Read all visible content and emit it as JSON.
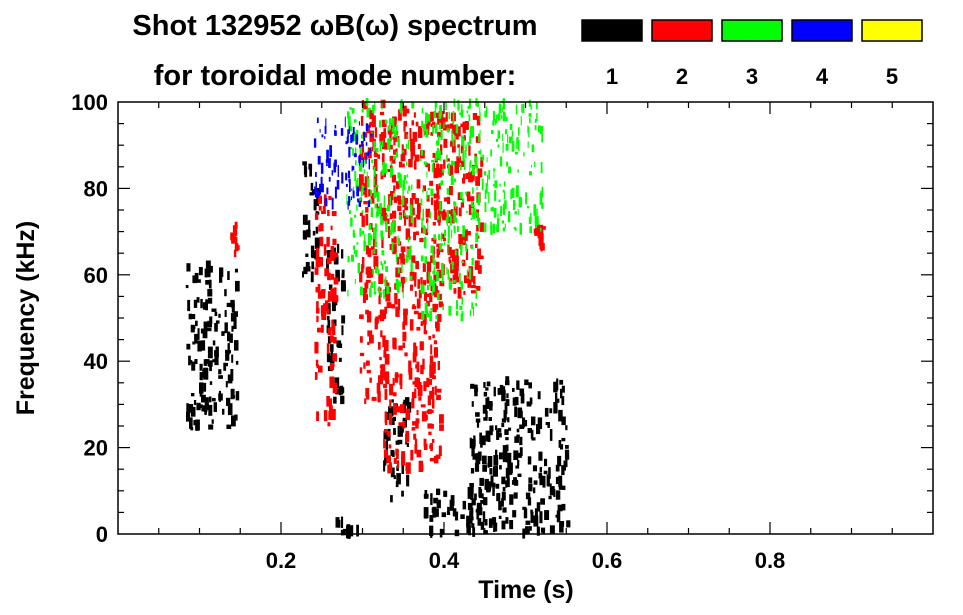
{
  "chart_data": {
    "type": "heatmap",
    "title_line1": "Shot 132952 ωB(ω) spectrum",
    "title_line2": "for toroidal mode number:",
    "xlabel": "Time (s)",
    "ylabel": "Frequency (kHz)",
    "xlim": [
      0.0,
      1.0
    ],
    "ylim": [
      0,
      100
    ],
    "x_tick_labels": [
      "0.2",
      "0.4",
      "0.6",
      "0.8"
    ],
    "x_ticks": [
      0.2,
      0.4,
      0.6,
      0.8
    ],
    "y_tick_labels": [
      "0",
      "20",
      "40",
      "60",
      "80",
      "100"
    ],
    "y_ticks": [
      0,
      20,
      40,
      60,
      80,
      100
    ],
    "legend": [
      {
        "mode": "1",
        "color": "#000000"
      },
      {
        "mode": "2",
        "color": "#ff0000"
      },
      {
        "mode": "3",
        "color": "#00ff00"
      },
      {
        "mode": "4",
        "color": "#0000ff"
      },
      {
        "mode": "5",
        "color": "#ffff00"
      }
    ],
    "regions": [
      {
        "n": 1,
        "t": [
          0.083,
          0.145
        ],
        "f": [
          24,
          62
        ]
      },
      {
        "n": 1,
        "t": [
          0.225,
          0.245
        ],
        "f": [
          58,
          86
        ]
      },
      {
        "n": 1,
        "t": [
          0.255,
          0.275
        ],
        "f": [
          30,
          68
        ]
      },
      {
        "n": 1,
        "t": [
          0.325,
          0.355
        ],
        "f": [
          8,
          32
        ]
      },
      {
        "n": 1,
        "t": [
          0.375,
          0.435
        ],
        "f": [
          0,
          10
        ]
      },
      {
        "n": 1,
        "t": [
          0.265,
          0.295
        ],
        "f": [
          0,
          4
        ]
      },
      {
        "n": 1,
        "t": [
          0.43,
          0.55
        ],
        "f": [
          0,
          36
        ]
      },
      {
        "n": 2,
        "t": [
          0.135,
          0.145
        ],
        "f": [
          64,
          72
        ]
      },
      {
        "n": 2,
        "t": [
          0.24,
          0.265
        ],
        "f": [
          25,
          78
        ]
      },
      {
        "n": 2,
        "t": [
          0.295,
          0.325
        ],
        "f": [
          30,
          100
        ]
      },
      {
        "n": 2,
        "t": [
          0.325,
          0.395
        ],
        "f": [
          15,
          98
        ]
      },
      {
        "n": 2,
        "t": [
          0.39,
          0.445
        ],
        "f": [
          55,
          97
        ]
      },
      {
        "n": 2,
        "t": [
          0.51,
          0.52
        ],
        "f": [
          66,
          71
        ]
      },
      {
        "n": 3,
        "t": [
          0.28,
          0.36
        ],
        "f": [
          55,
          100
        ]
      },
      {
        "n": 3,
        "t": [
          0.37,
          0.44
        ],
        "f": [
          50,
          100
        ]
      },
      {
        "n": 3,
        "t": [
          0.44,
          0.52
        ],
        "f": [
          70,
          100
        ]
      },
      {
        "n": 4,
        "t": [
          0.24,
          0.31
        ],
        "f": [
          76,
          96
        ]
      }
    ]
  }
}
